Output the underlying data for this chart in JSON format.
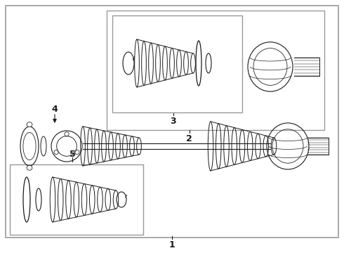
{
  "bg_color": "#ffffff",
  "line_color": "#1a1a1a",
  "border_color": "#999999",
  "fig_width": 4.9,
  "fig_height": 3.6,
  "dpi": 100,
  "labels": {
    "1": "1",
    "2": "2",
    "3": "3",
    "4": "4",
    "5": "5"
  }
}
